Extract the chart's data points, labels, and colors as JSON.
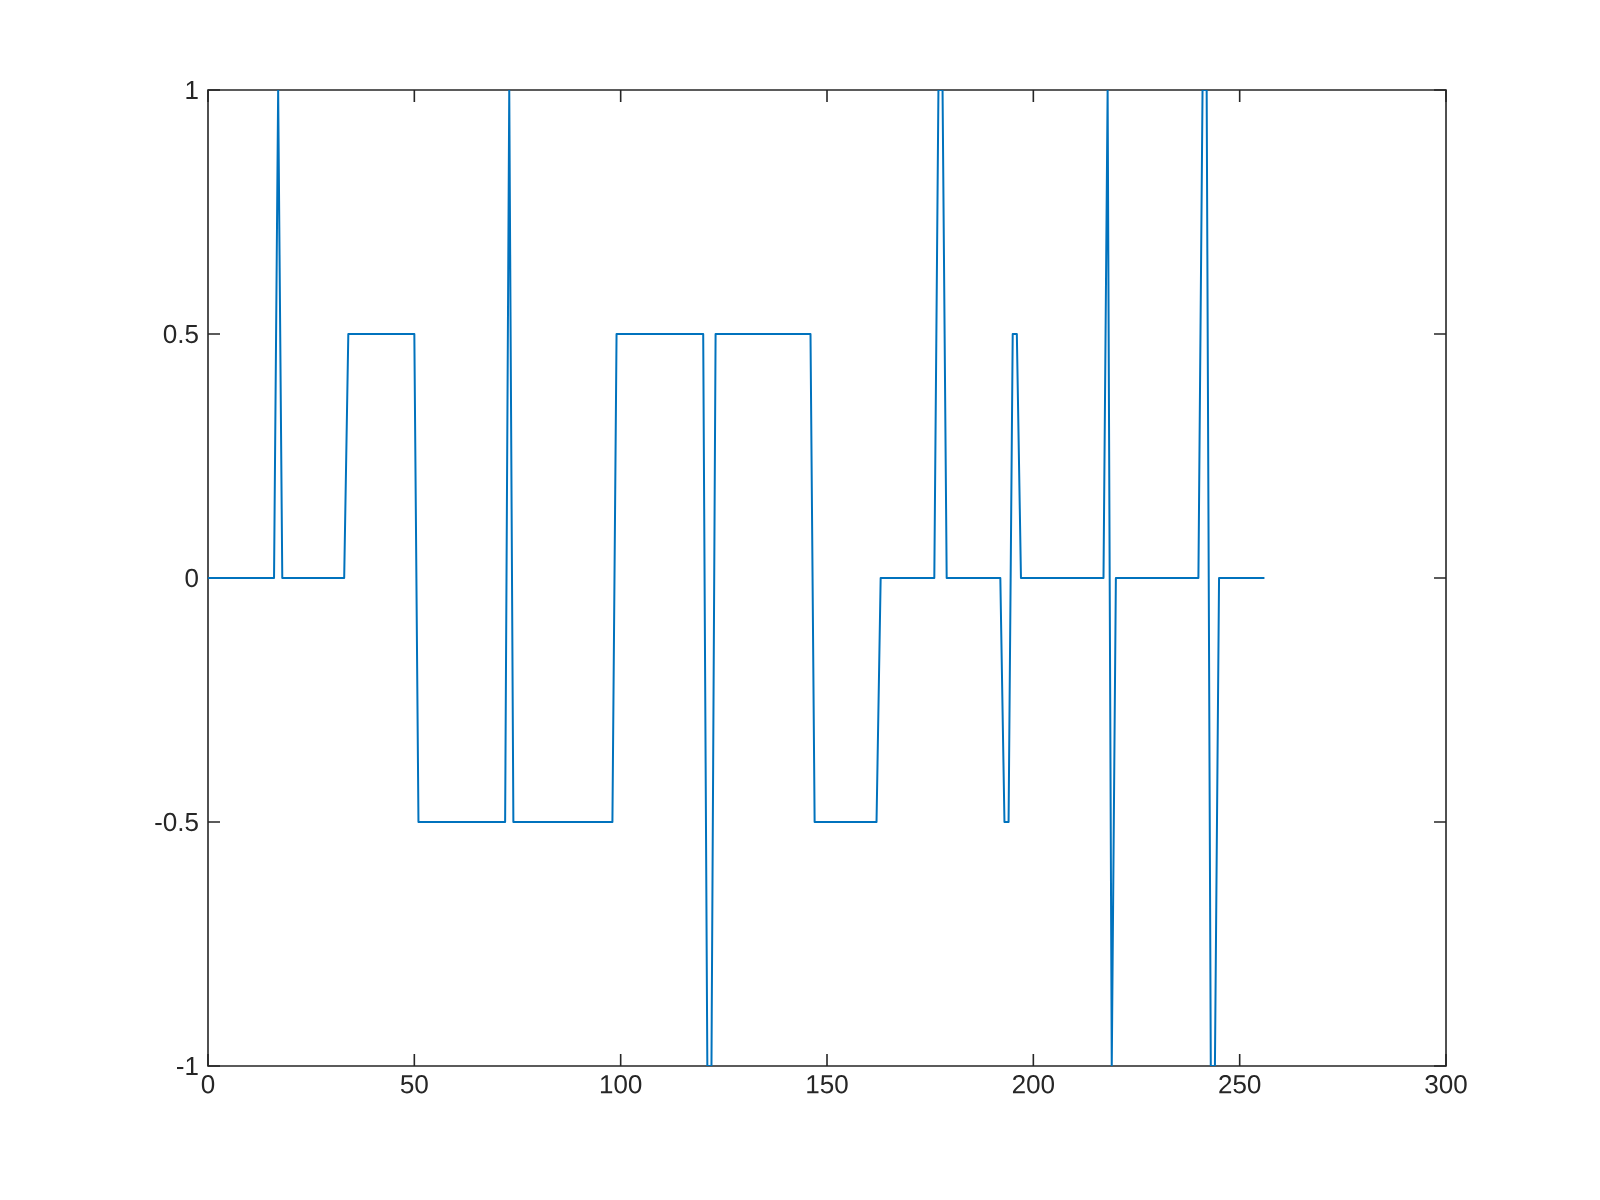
{
  "chart_data": {
    "type": "line",
    "color": "#0072bd",
    "marker": "none",
    "line_style": "solid",
    "grid": false,
    "x": [
      0,
      16,
      17,
      18,
      33,
      34,
      50,
      51,
      72,
      73,
      74,
      98,
      99,
      120,
      121,
      122,
      123,
      146,
      147,
      162,
      163,
      176,
      177,
      178,
      179,
      192,
      193,
      194,
      195,
      196,
      197,
      217,
      218,
      219,
      220,
      240,
      241,
      242,
      243,
      244,
      245,
      256
    ],
    "values": [
      0,
      0,
      1,
      0,
      0,
      0.5,
      0.5,
      -0.5,
      -0.5,
      1,
      -0.5,
      -0.5,
      0.5,
      0.5,
      -1,
      -1,
      0.5,
      0.5,
      -0.5,
      -0.5,
      0,
      0,
      1,
      1,
      0,
      0,
      -0.5,
      -0.5,
      0.5,
      0.5,
      0,
      0,
      1,
      -1,
      0,
      0,
      1,
      1,
      -1,
      -1,
      0,
      0
    ],
    "xlim": [
      0,
      300
    ],
    "xticks": [
      0,
      50,
      100,
      150,
      200,
      250,
      300
    ],
    "ylim": [
      -1,
      1
    ],
    "yticks": [
      -1,
      -0.5,
      0,
      0.5,
      1
    ]
  }
}
